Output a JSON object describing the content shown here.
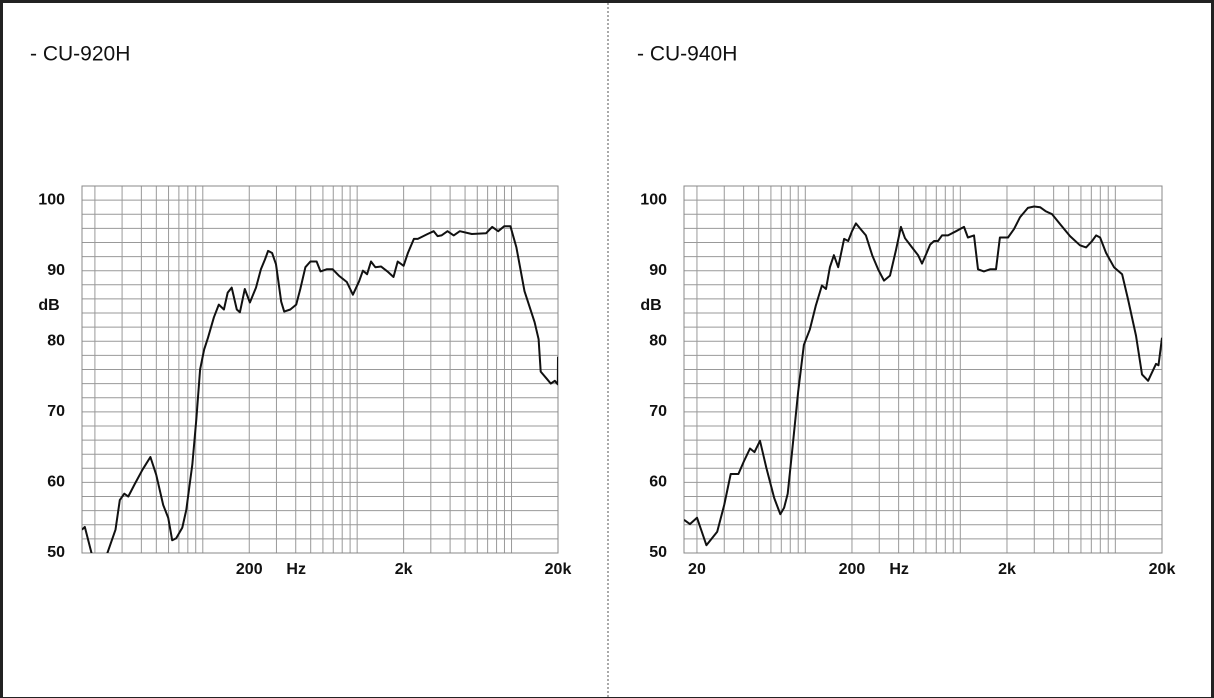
{
  "chart_data": [
    {
      "type": "line",
      "title": "- CU-920H",
      "ylabel": "dB",
      "xlabel": "Hz",
      "xlog": true,
      "grid": true,
      "color": "#111111",
      "xlim": [
        16.5,
        20000
      ],
      "ylim": [
        50,
        102
      ],
      "xticks": [
        200,
        {
          "value": 2000,
          "label": "2k"
        },
        {
          "value": 20000,
          "label": "20k"
        }
      ],
      "yticks": [
        50,
        60,
        70,
        80,
        90,
        100
      ],
      "xminor": [
        20,
        30,
        40,
        50,
        60,
        70,
        80,
        90,
        100,
        200,
        300,
        400,
        500,
        600,
        700,
        800,
        900,
        1000,
        2000,
        3000,
        4000,
        5000,
        6000,
        7000,
        8000,
        9000,
        10000,
        20000
      ],
      "yminor": [
        52,
        54,
        56,
        58,
        62,
        64,
        66,
        68,
        72,
        74,
        76,
        78,
        82,
        84,
        86,
        88,
        92,
        94,
        96,
        98,
        102
      ],
      "x": [
        16.5,
        17.2,
        19.0,
        21.0,
        24.1,
        27.2,
        29.0,
        31.0,
        32.9,
        36.1,
        40.7,
        45.8,
        49.9,
        55.4,
        59.7,
        63.4,
        67.3,
        73.7,
        78.2,
        83.0,
        85.5,
        90.7,
        96.1,
        102,
        108,
        118,
        127,
        137,
        145,
        154,
        166,
        174,
        187,
        202,
        221,
        238,
        253,
        265,
        281,
        298,
        322,
        337,
        369,
        403,
        428,
        462,
        498,
        546,
        579,
        634,
        694,
        760,
        857,
        939,
        1030,
        1090,
        1160,
        1230,
        1310,
        1430,
        1570,
        1720,
        1830,
        2000,
        2130,
        2330,
        2470,
        2860,
        3130,
        3320,
        3520,
        3850,
        4220,
        4620,
        5530,
        6830,
        7490,
        8200,
        8980,
        9830,
        10760,
        12130,
        14110,
        14970,
        15440,
        16910,
        17970,
        19080,
        19950,
        20000
      ],
      "values": [
        53.3,
        53.7,
        50,
        47.6,
        50,
        53.3,
        57.5,
        58.4,
        58,
        59.7,
        61.8,
        63.6,
        61.1,
        56.8,
        55,
        51.8,
        52.1,
        53.6,
        56.1,
        60.4,
        62.5,
        68.9,
        76,
        78.8,
        80.5,
        83.4,
        85.2,
        84.5,
        86.9,
        87.6,
        84.5,
        84.1,
        87.4,
        85.5,
        87.6,
        90.2,
        91.6,
        92.8,
        92.5,
        90.9,
        85.6,
        84.2,
        84.5,
        85.2,
        87.4,
        90.5,
        91.3,
        91.3,
        89.9,
        90.2,
        90.2,
        89.3,
        88.4,
        86.6,
        88.5,
        90,
        89.5,
        91.3,
        90.5,
        90.6,
        89.9,
        89.1,
        91.3,
        90.7,
        92.5,
        94.5,
        94.5,
        95.2,
        95.6,
        94.9,
        95,
        95.6,
        95,
        95.6,
        95.2,
        95.3,
        96.2,
        95.6,
        96.3,
        96.3,
        93.3,
        87.1,
        82.7,
        80.3,
        75.7,
        74.7,
        74,
        74.4,
        73.9,
        77.8
      ]
    },
    {
      "type": "line",
      "title": "- CU-940H",
      "ylabel": "dB",
      "xlabel": "Hz",
      "xlog": true,
      "grid": true,
      "color": "#111111",
      "xlim": [
        16.5,
        20000
      ],
      "ylim": [
        50,
        102
      ],
      "xticks": [
        20,
        200,
        {
          "value": 2000,
          "label": "2k"
        },
        {
          "value": 20000,
          "label": "20k"
        }
      ],
      "yticks": [
        50,
        60,
        70,
        80,
        90,
        100
      ],
      "xminor": [
        20,
        30,
        40,
        50,
        60,
        70,
        80,
        90,
        100,
        200,
        300,
        400,
        500,
        600,
        700,
        800,
        900,
        1000,
        2000,
        3000,
        4000,
        5000,
        6000,
        7000,
        8000,
        9000,
        10000,
        20000
      ],
      "yminor": [
        52,
        54,
        56,
        58,
        62,
        64,
        66,
        68,
        72,
        74,
        76,
        78,
        82,
        84,
        86,
        88,
        92,
        94,
        96,
        98,
        102
      ],
      "x": [
        16.5,
        18,
        20,
        23,
        25,
        27,
        30,
        33,
        37,
        40,
        44,
        47,
        51,
        56,
        63,
        69,
        73,
        77,
        82,
        90,
        98,
        107,
        117,
        128,
        136,
        144,
        153,
        163,
        178,
        189,
        200,
        212,
        225,
        246,
        270,
        295,
        322,
        352,
        385,
        414,
        440,
        488,
        534,
        566,
        601,
        638,
        677,
        718,
        762,
        833,
        939,
        1056,
        1120,
        1226,
        1300,
        1420,
        1555,
        1700,
        1800,
        2030,
        2220,
        2430,
        2730,
        2990,
        3270,
        3570,
        3910,
        4400,
        5100,
        5920,
        6480,
        7080,
        7510,
        7970,
        8720,
        9810,
        11050,
        12080,
        13600,
        14870,
        16270,
        18300,
        19000,
        20000
      ],
      "values": [
        54.7,
        54.1,
        55,
        51.1,
        52.1,
        53,
        56.8,
        61.2,
        61.2,
        62.9,
        64.8,
        64.3,
        65.9,
        62.1,
        57.8,
        55.5,
        56.4,
        58.4,
        64.1,
        72.9,
        79.5,
        81.7,
        85.1,
        87.9,
        87.4,
        90.5,
        92.2,
        90.5,
        94.5,
        94.2,
        95.6,
        96.7,
        96,
        95,
        92.2,
        90.2,
        88.6,
        89.3,
        93,
        96.2,
        94.6,
        93.3,
        92.2,
        91,
        92.3,
        93.7,
        94.2,
        94.2,
        95,
        95,
        95.6,
        96.2,
        94.7,
        95,
        90.2,
        89.9,
        90.2,
        90.2,
        94.7,
        94.7,
        95.9,
        97.6,
        98.9,
        99.1,
        99,
        98.4,
        98,
        96.6,
        94.9,
        93.6,
        93.3,
        94.2,
        95,
        94.7,
        92.5,
        90.5,
        89.5,
        85.9,
        80.8,
        75.3,
        74.4,
        76.8,
        76.6,
        80.5
      ]
    }
  ]
}
